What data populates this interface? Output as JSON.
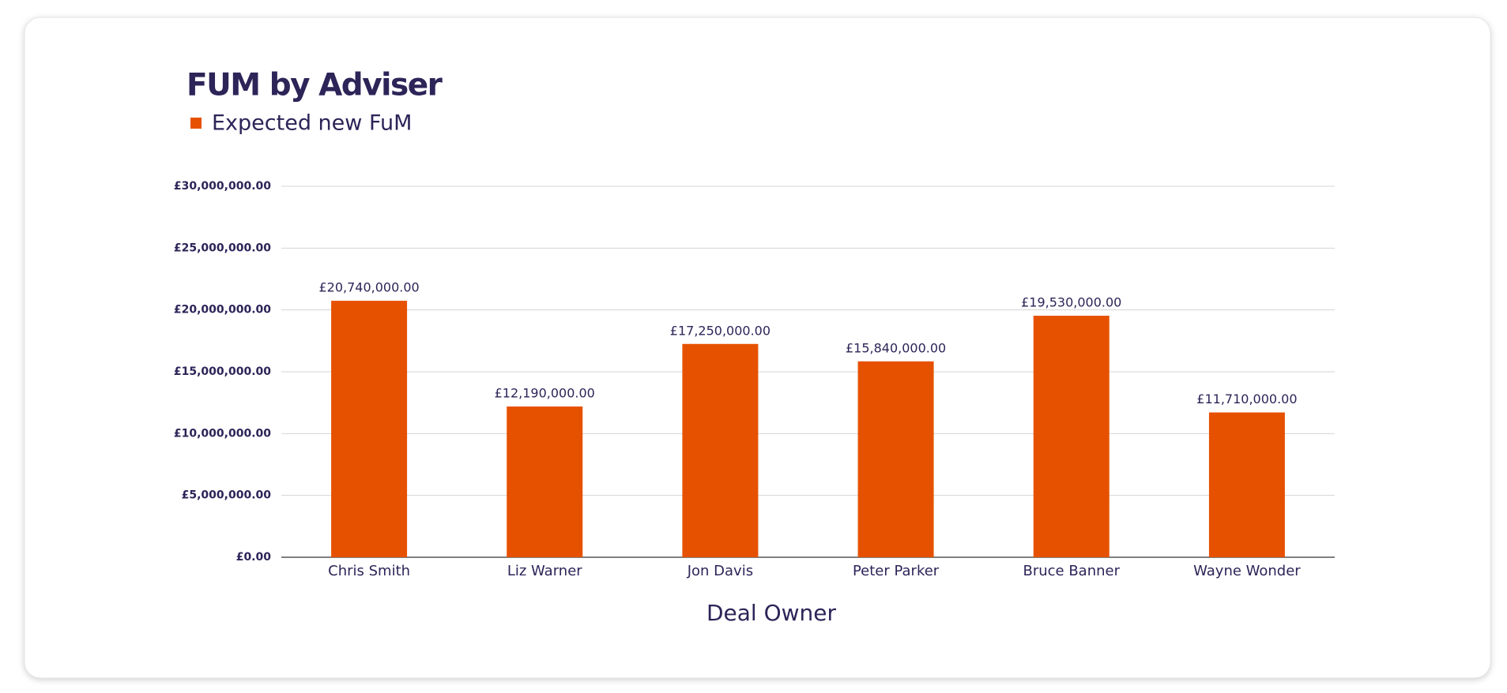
{
  "chart_data": {
    "type": "bar",
    "title": "FUM by Adviser",
    "x_label": "Deal Owner",
    "categories": [
      "Chris Smith",
      "Liz Warner",
      "Jon Davis",
      "Peter Parker",
      "Bruce Banner",
      "Wayne Wonder"
    ],
    "series": [
      {
        "name": "Expected new FuM",
        "color": "#e65100",
        "values": [
          20740000,
          12190000,
          17250000,
          15840000,
          19530000,
          11710000
        ],
        "value_labels": [
          "£20,740,000.00",
          "£12,190,000.00",
          "£17,250,000.00",
          "£15,840,000.00",
          "£19,530,000.00",
          "£11,710,000.00"
        ]
      }
    ],
    "ylim": [
      0,
      30000000
    ],
    "yticks": [
      {
        "value": 0,
        "label": "£0.00"
      },
      {
        "value": 5000000,
        "label": "£5,000,000.00"
      },
      {
        "value": 10000000,
        "label": "£10,000,000.00"
      },
      {
        "value": 15000000,
        "label": "£15,000,000.00"
      },
      {
        "value": 20000000,
        "label": "£20,000,000.00"
      },
      {
        "value": 25000000,
        "label": "£25,000,000.00"
      },
      {
        "value": 30000000,
        "label": "£30,000,000.00"
      }
    ],
    "grid": true,
    "legend": "top-left"
  }
}
